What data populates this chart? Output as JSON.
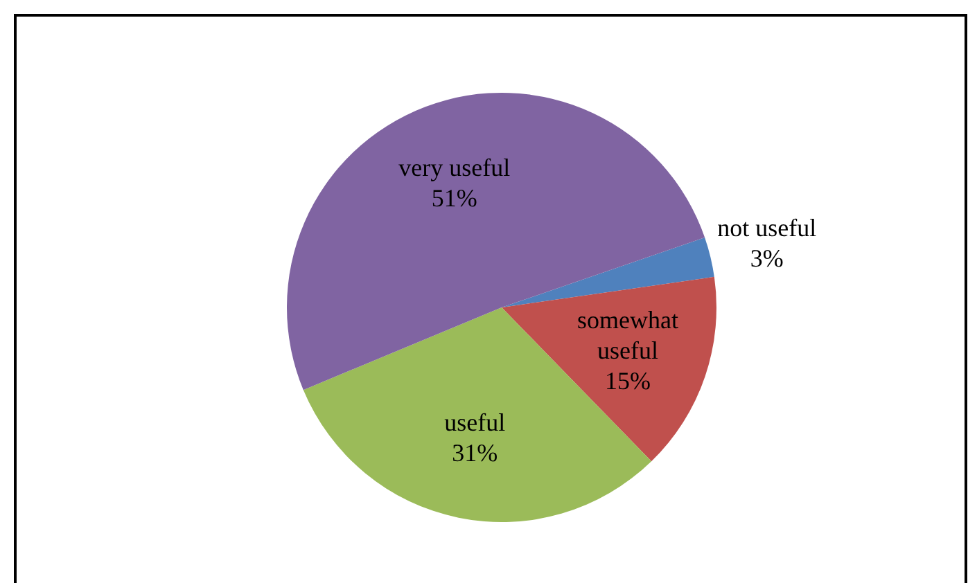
{
  "chart_data": {
    "type": "pie",
    "categories": [
      "not useful",
      "somewhat useful",
      "useful",
      "very useful"
    ],
    "values": [
      3,
      15,
      31,
      51
    ],
    "colors": [
      "#4f81bd",
      "#c0504d",
      "#9bbb59",
      "#8064a2"
    ],
    "value_labels": [
      "3%",
      "15%",
      "31%",
      "51%"
    ]
  }
}
